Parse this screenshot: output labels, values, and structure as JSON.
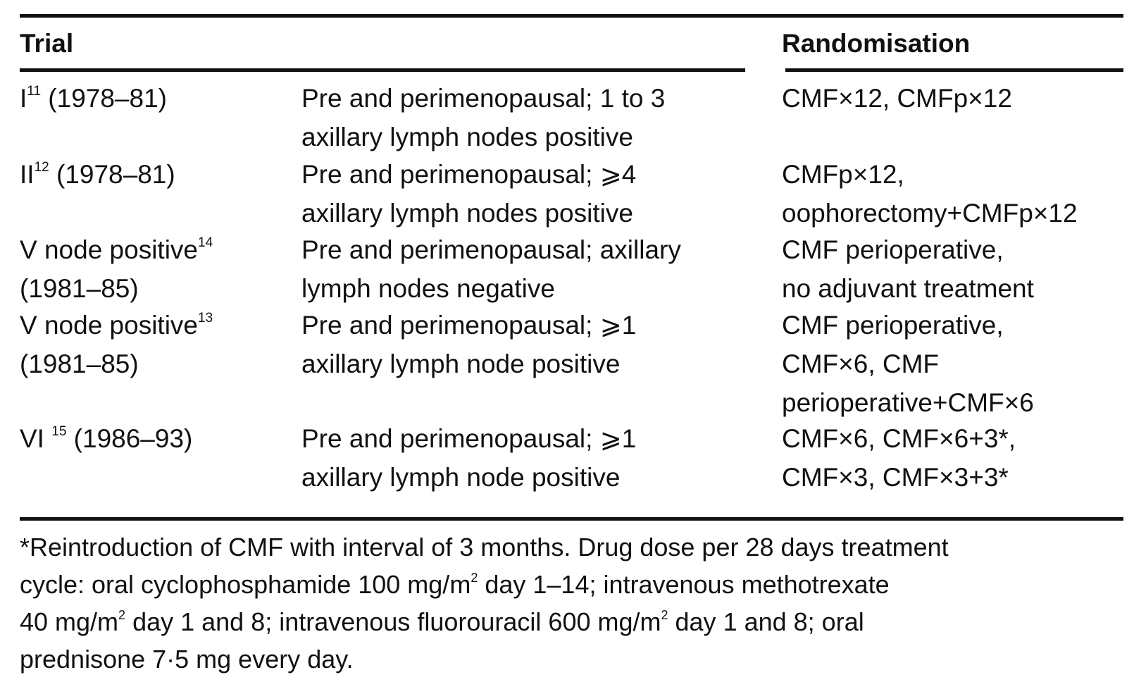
{
  "header": {
    "trial": "Trial",
    "randomisation": "Randomisation"
  },
  "rows": [
    {
      "trial_main": "I",
      "trial_ref": "11",
      "trial_rest": " (1978–81)",
      "trial_line2": "",
      "population": [
        "Pre and perimenopausal; 1 to 3",
        "axillary lymph nodes positive"
      ],
      "randomisation": [
        "CMF×12, CMFp×12"
      ]
    },
    {
      "trial_main": "II",
      "trial_ref": "12",
      "trial_rest": " (1978–81)",
      "trial_line2": "",
      "population": [
        "Pre and perimenopausal; ⩾4",
        "axillary lymph nodes positive"
      ],
      "randomisation": [
        "CMFp×12,",
        "oophorectomy+CMFp×12"
      ]
    },
    {
      "trial_main": "V node positive",
      "trial_ref": "14",
      "trial_rest": "",
      "trial_line2": "(1981–85)",
      "population": [
        "Pre and perimenopausal; axillary",
        "lymph nodes negative"
      ],
      "randomisation": [
        "CMF perioperative,",
        "no adjuvant treatment"
      ]
    },
    {
      "trial_main": "V node positive",
      "trial_ref": "13",
      "trial_rest": "",
      "trial_line2": "(1981–85)",
      "population": [
        "Pre and perimenopausal; ⩾1",
        "axillary lymph node positive"
      ],
      "randomisation": [
        "CMF perioperative,",
        "CMF×6, CMF",
        "perioperative+CMF×6"
      ]
    },
    {
      "trial_main": "VI ",
      "trial_ref": "15",
      "trial_rest": " (1986–93)",
      "trial_line2": "",
      "population": [
        "Pre and perimenopausal; ⩾1",
        "axillary lymph node positive"
      ],
      "randomisation": [
        "CMF×6, CMF×6+3*,",
        "CMF×3, CMF×3+3*"
      ]
    }
  ],
  "footnote": {
    "line1": "*Reintroduction of CMF with interval of 3 months. Drug dose per 28 days treatment",
    "line2_a": "cycle: oral cyclophosphamide 100 mg/m",
    "line2_sup": "2",
    "line2_b": " day 1–14; intravenous methotrexate",
    "line3_a": "40 mg/m",
    "line3_sup1": "2",
    "line3_b": " day 1 and 8; intravenous fluorouracil 600 mg/m",
    "line3_sup2": "2",
    "line3_c": " day 1 and 8; oral",
    "line4": "prednisone 7·5 mg every day."
  }
}
